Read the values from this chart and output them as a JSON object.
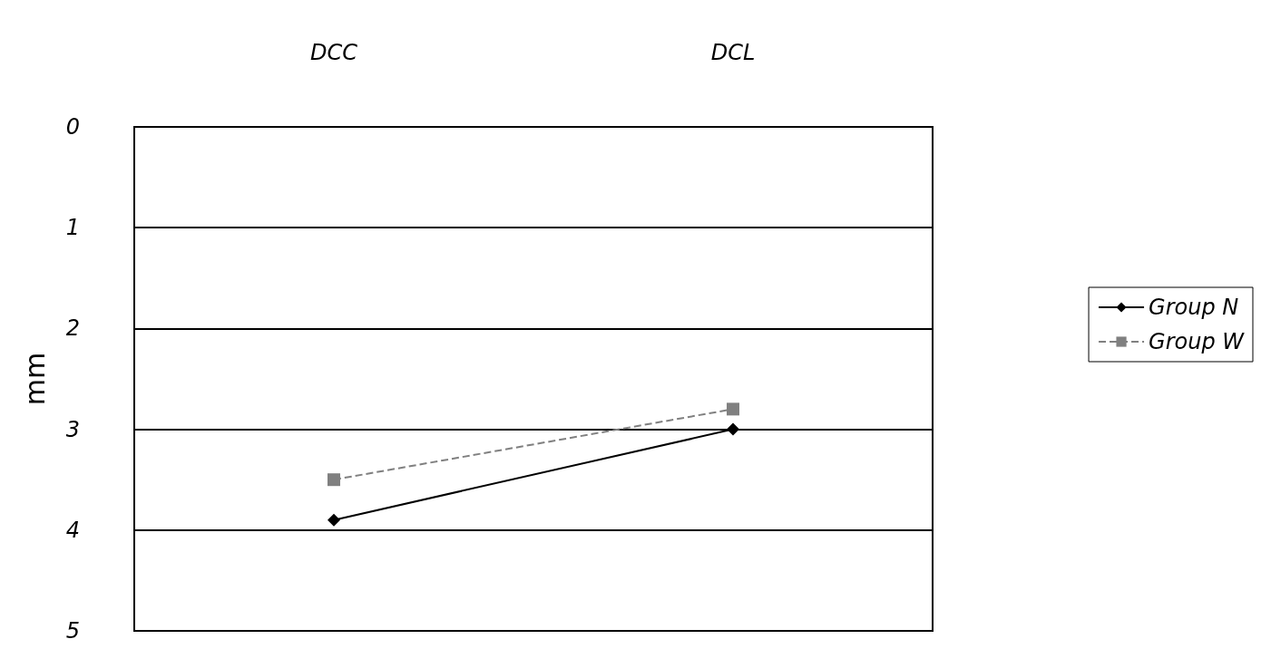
{
  "chart_data": {
    "type": "line",
    "ylabel": "mm",
    "categories": [
      "DCC",
      "DCL"
    ],
    "series": [
      {
        "name": "Group N",
        "color": "#000000",
        "values": [
          3.9,
          3.0
        ],
        "marker": "diamond",
        "line_style": "solid"
      },
      {
        "name": "Group W",
        "color": "#808080",
        "values": [
          3.5,
          2.8
        ],
        "marker": "square",
        "line_style": "dashed"
      }
    ],
    "ylim": [
      5,
      0
    ],
    "yticks": [
      0,
      1,
      2,
      3,
      4,
      5
    ],
    "grid": "y",
    "legend": "right"
  }
}
